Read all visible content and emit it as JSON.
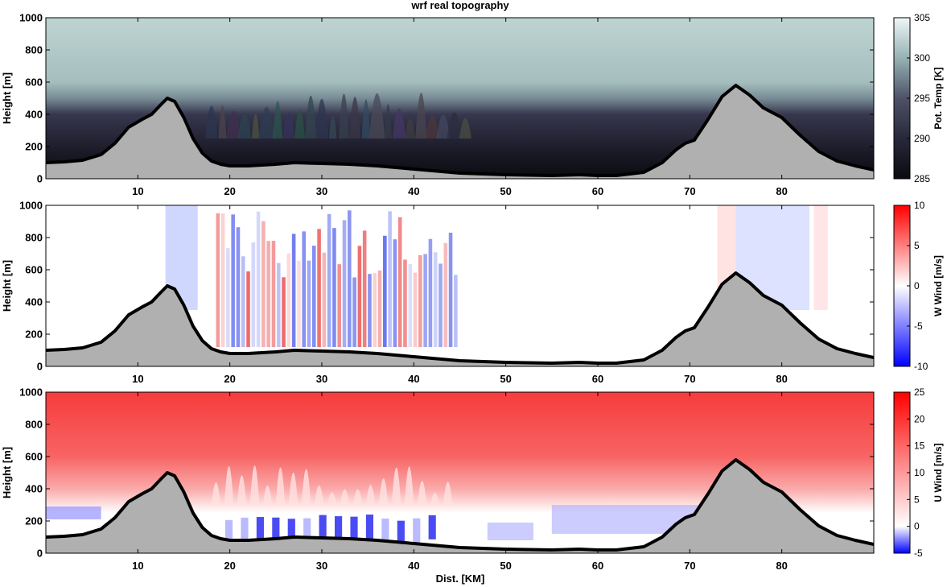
{
  "figure": {
    "title": "wrf real topography",
    "xlabel": "Dist. [KM]"
  },
  "colors": {
    "terrain_fill": "#b0b0b0",
    "terrain_line": "#000000",
    "div_neg": "#0000ff",
    "div_pos": "#ff0000",
    "temp_low": "#0a0a10",
    "temp_mid": "#3d3d55",
    "temp_high": "#b8d2d0"
  },
  "chart_data": [
    {
      "type": "heatmap",
      "ylabel": "Height [m]",
      "xlim": [
        0,
        90
      ],
      "ylim": [
        0,
        1000
      ],
      "xticks": [
        "10",
        "20",
        "30",
        "40",
        "50",
        "60",
        "70",
        "80"
      ],
      "yticks": [
        "0",
        "200",
        "400",
        "600",
        "800",
        "1000"
      ],
      "colorbar": {
        "label": "Pot. Temp [K]",
        "range": [
          285,
          305
        ],
        "ticks": [
          "285",
          "290",
          "295",
          "300",
          "305"
        ],
        "colormap": "bone"
      },
      "terrain": {
        "x": [
          0,
          2,
          4,
          6,
          7.5,
          9,
          10.5,
          11.5,
          12.5,
          13.2,
          14,
          15,
          16,
          17,
          18,
          19,
          20,
          22,
          25,
          27,
          30,
          33,
          36,
          40,
          45,
          50,
          55,
          58,
          60,
          62,
          65,
          67,
          68.5,
          69.5,
          70.5,
          72,
          73.5,
          75,
          76.5,
          78,
          80,
          82,
          84,
          86,
          88,
          90
        ],
        "y": [
          100,
          105,
          115,
          150,
          220,
          320,
          370,
          400,
          460,
          500,
          480,
          380,
          250,
          160,
          110,
          90,
          80,
          80,
          90,
          100,
          95,
          90,
          80,
          60,
          35,
          25,
          20,
          25,
          20,
          20,
          40,
          100,
          180,
          220,
          240,
          370,
          510,
          580,
          520,
          440,
          380,
          270,
          170,
          110,
          80,
          55
        ]
      }
    },
    {
      "type": "heatmap",
      "ylabel": "Height [m]",
      "xlim": [
        0,
        90
      ],
      "ylim": [
        0,
        1000
      ],
      "xticks": [
        "10",
        "20",
        "30",
        "40",
        "50",
        "60",
        "70",
        "80"
      ],
      "yticks": [
        "0",
        "200",
        "400",
        "600",
        "800",
        "1000"
      ],
      "colorbar": {
        "label": "W Wind [m/s]",
        "range": [
          -10,
          10
        ],
        "ticks": [
          "-10",
          "-5",
          "0",
          "5",
          "10"
        ],
        "colormap": "blue-white-red"
      },
      "terrain": "same as panel 1"
    },
    {
      "type": "heatmap",
      "ylabel": "Height [m]",
      "xlabel": "Dist. [KM]",
      "xlim": [
        0,
        90
      ],
      "ylim": [
        0,
        1000
      ],
      "xticks": [
        "10",
        "20",
        "30",
        "40",
        "50",
        "60",
        "70",
        "80"
      ],
      "yticks": [
        "0",
        "200",
        "400",
        "600",
        "800",
        "1000"
      ],
      "colorbar": {
        "label": "U Wind [m/s]",
        "range": [
          -5,
          25
        ],
        "ticks": [
          "-5",
          "0",
          "5",
          "10",
          "15",
          "20",
          "25"
        ],
        "colormap": "blue-white-red"
      },
      "terrain": "same as panel 1"
    }
  ]
}
